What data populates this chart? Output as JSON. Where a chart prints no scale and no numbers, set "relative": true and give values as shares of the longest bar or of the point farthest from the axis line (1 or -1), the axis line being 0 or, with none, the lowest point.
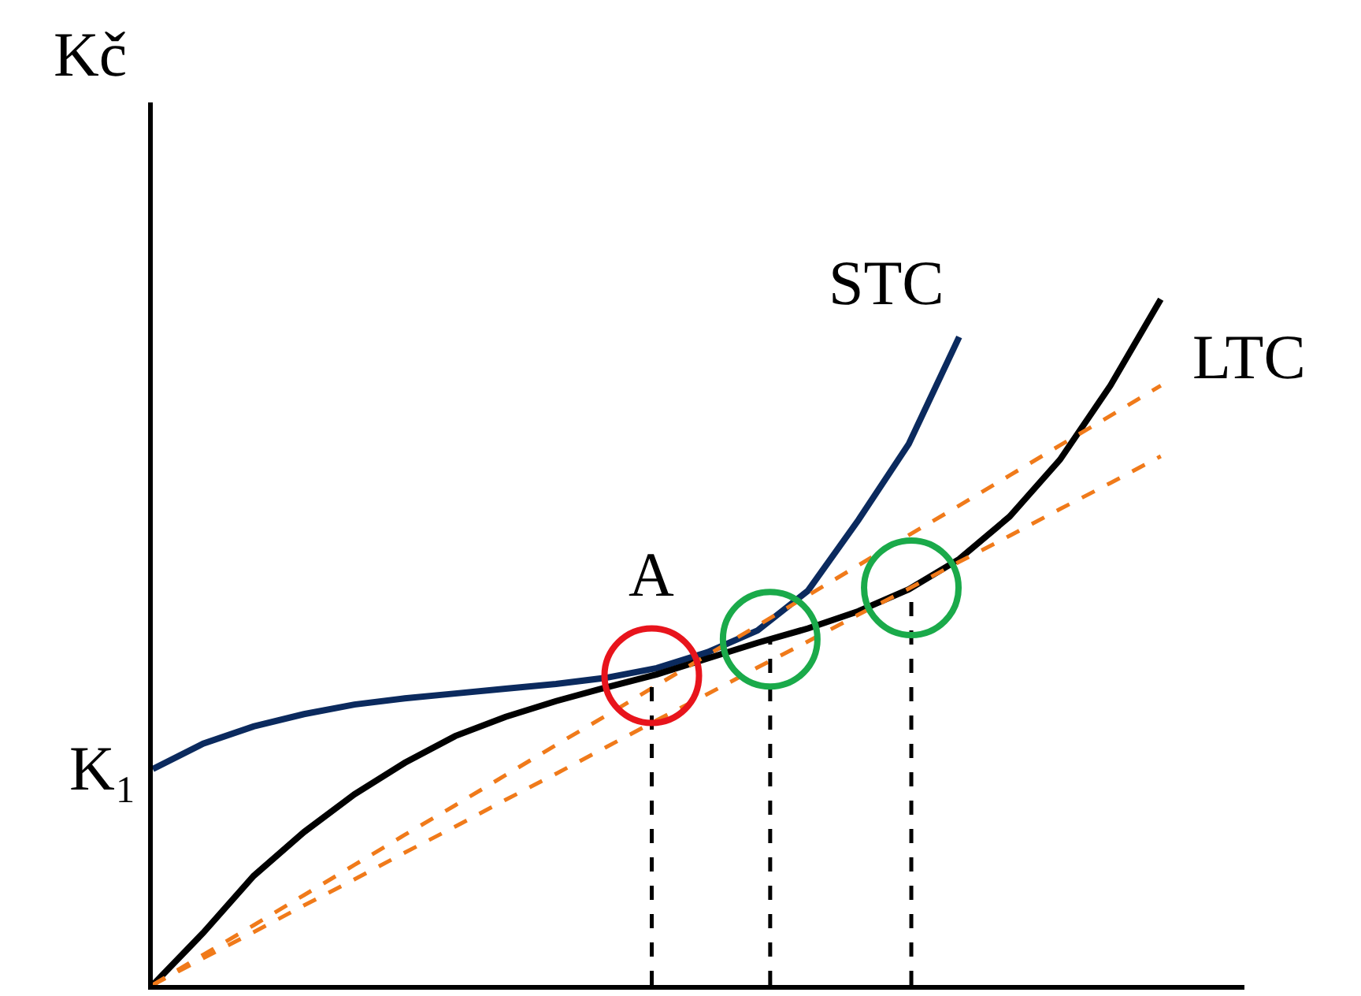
{
  "chart_data": {
    "type": "line",
    "relative": true,
    "ylabel": "Kč",
    "line_style": "solid",
    "categories": [
      null,
      null,
      null,
      null,
      null,
      null,
      null,
      null,
      null,
      null,
      null,
      null,
      null,
      null,
      null,
      null,
      null,
      null,
      null,
      null,
      null
    ],
    "annotations": [
      "K₁",
      "A"
    ],
    "series": [
      {
        "name": "STC",
        "color": "#0b2a5e",
        "values": [
          0.315,
          0.352,
          0.377,
          0.395,
          0.409,
          0.418,
          0.425,
          0.432,
          0.439,
          0.448,
          0.462,
          0.485,
          0.517,
          0.575,
          0.678,
          0.789,
          0.945,
          null,
          null,
          null,
          null
        ]
      },
      {
        "name": "LTC",
        "color": "#000000",
        "values": [
          0,
          0.076,
          0.159,
          0.223,
          0.278,
          0.324,
          0.363,
          0.391,
          0.414,
          0.434,
          0.453,
          0.476,
          0.499,
          0.52,
          0.545,
          0.577,
          0.621,
          0.683,
          0.766,
          0.874,
          1.0
        ]
      },
      {
        "color": "#f07a1a",
        "line_style": "dashed",
        "values": [
          0,
          0.044,
          0.087,
          0.131,
          0.175,
          0.219,
          0.262,
          0.306,
          0.35,
          0.393,
          0.437,
          0.481,
          0.524,
          0.568,
          0.612,
          0.656,
          0.699,
          0.743,
          0.787,
          0.83,
          0.874
        ]
      },
      {
        "color": "#f07a1a",
        "line_style": "dashed",
        "values": [
          0,
          0.039,
          0.077,
          0.116,
          0.154,
          0.193,
          0.231,
          0.27,
          0.308,
          0.347,
          0.386,
          0.424,
          0.463,
          0.501,
          0.54,
          0.578,
          0.617,
          0.655,
          0.694,
          0.732,
          0.771
        ]
      }
    ]
  }
}
